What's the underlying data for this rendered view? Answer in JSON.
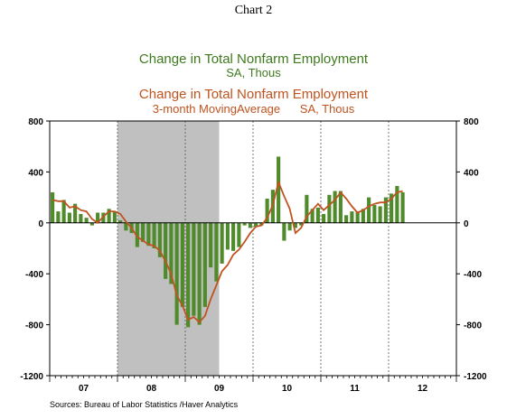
{
  "header": {
    "doc_title": "Chart 2",
    "title_bars": "Change in Total Nonfarm Employment",
    "subtitle_bars": "SA, Thous",
    "title_line": "Change in Total Nonfarm Employment",
    "subtitle_line": "3-month MovingAverage      SA, Thous"
  },
  "footer": {
    "source": "Sources:   Bureau of Labor Statistics /Haver Analytics"
  },
  "colors": {
    "bar": "#4f8a2b",
    "line": "#c0531f",
    "recession": "#c0c0c0"
  },
  "chart_data": {
    "type": "bar",
    "title": "Change in Total Nonfarm Employment",
    "ylim": [
      -1200,
      800
    ],
    "yticks": [
      800,
      400,
      0,
      -400,
      -800,
      -1200
    ],
    "x_start": "2007-01",
    "x_end": "2012-12",
    "year_labels": [
      "07",
      "08",
      "09",
      "10",
      "11",
      "12"
    ],
    "recession": {
      "start": "2008-01",
      "end": "2009-06"
    },
    "grid": "dotted vertical at year boundaries",
    "series": [
      {
        "name": "SA, Thous",
        "type": "bar",
        "x": [
          "2007-01",
          "2007-02",
          "2007-03",
          "2007-04",
          "2007-05",
          "2007-06",
          "2007-07",
          "2007-08",
          "2007-09",
          "2007-10",
          "2007-11",
          "2007-12",
          "2008-01",
          "2008-02",
          "2008-03",
          "2008-04",
          "2008-05",
          "2008-06",
          "2008-07",
          "2008-08",
          "2008-09",
          "2008-10",
          "2008-11",
          "2008-12",
          "2009-01",
          "2009-02",
          "2009-03",
          "2009-04",
          "2009-05",
          "2009-06",
          "2009-07",
          "2009-08",
          "2009-09",
          "2009-10",
          "2009-11",
          "2009-12",
          "2010-01",
          "2010-02",
          "2010-03",
          "2010-04",
          "2010-05",
          "2010-06",
          "2010-07",
          "2010-08",
          "2010-09",
          "2010-10",
          "2010-11",
          "2010-12",
          "2011-01",
          "2011-02",
          "2011-03",
          "2011-04",
          "2011-05",
          "2011-06",
          "2011-07",
          "2011-08",
          "2011-09",
          "2011-10",
          "2011-11",
          "2011-12",
          "2012-01",
          "2012-02",
          "2012-03"
        ],
        "values": [
          240,
          90,
          180,
          80,
          150,
          70,
          40,
          -20,
          80,
          80,
          110,
          90,
          20,
          -60,
          -80,
          -190,
          -150,
          -180,
          -200,
          -270,
          -440,
          -480,
          -800,
          -660,
          -820,
          -730,
          -800,
          -660,
          -350,
          -460,
          -320,
          -210,
          -220,
          -190,
          -20,
          -40,
          -30,
          -20,
          190,
          260,
          520,
          -140,
          -60,
          -40,
          -20,
          220,
          110,
          120,
          70,
          220,
          250,
          250,
          60,
          90,
          90,
          110,
          200,
          140,
          130,
          200,
          230,
          290,
          240
        ]
      },
      {
        "name": "3-month MovingAverage",
        "type": "line",
        "x": [
          "2007-01",
          "2007-02",
          "2007-03",
          "2007-04",
          "2007-05",
          "2007-06",
          "2007-07",
          "2007-08",
          "2007-09",
          "2007-10",
          "2007-11",
          "2007-12",
          "2008-01",
          "2008-02",
          "2008-03",
          "2008-04",
          "2008-05",
          "2008-06",
          "2008-07",
          "2008-08",
          "2008-09",
          "2008-10",
          "2008-11",
          "2008-12",
          "2009-01",
          "2009-02",
          "2009-03",
          "2009-04",
          "2009-05",
          "2009-06",
          "2009-07",
          "2009-08",
          "2009-09",
          "2009-10",
          "2009-11",
          "2009-12",
          "2010-01",
          "2010-02",
          "2010-03",
          "2010-04",
          "2010-05",
          "2010-06",
          "2010-07",
          "2010-08",
          "2010-09",
          "2010-10",
          "2010-11",
          "2010-12",
          "2011-01",
          "2011-02",
          "2011-03",
          "2011-04",
          "2011-05",
          "2011-06",
          "2011-07",
          "2011-08",
          "2011-09",
          "2011-10",
          "2011-11",
          "2011-12",
          "2012-01",
          "2012-02",
          "2012-03"
        ],
        "values": [
          180,
          170,
          170,
          120,
          130,
          100,
          90,
          30,
          0,
          50,
          90,
          90,
          70,
          10,
          -40,
          -110,
          -140,
          -170,
          -180,
          -220,
          -300,
          -400,
          -570,
          -650,
          -760,
          -740,
          -780,
          -730,
          -600,
          -490,
          -380,
          -330,
          -250,
          -210,
          -150,
          -80,
          -30,
          -20,
          40,
          140,
          320,
          210,
          110,
          -80,
          -40,
          50,
          100,
          150,
          100,
          140,
          180,
          240,
          190,
          130,
          80,
          100,
          130,
          150,
          160,
          160,
          190,
          240,
          250
        ]
      }
    ]
  }
}
